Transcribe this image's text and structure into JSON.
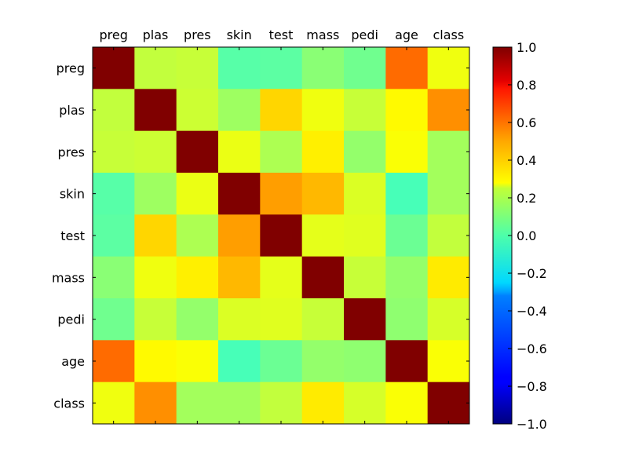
{
  "chart_data": {
    "type": "heatmap",
    "title": "",
    "xlabel": "",
    "ylabel": "",
    "x_categories": [
      "preg",
      "plas",
      "pres",
      "skin",
      "test",
      "mass",
      "pedi",
      "age",
      "class"
    ],
    "y_categories": [
      "preg",
      "plas",
      "pres",
      "skin",
      "test",
      "mass",
      "pedi",
      "age",
      "class"
    ],
    "x_axis_position": "top",
    "values": [
      [
        1.0,
        0.13,
        0.14,
        -0.08,
        -0.07,
        0.02,
        -0.03,
        0.54,
        0.22
      ],
      [
        0.13,
        1.0,
        0.15,
        0.06,
        0.33,
        0.22,
        0.14,
        0.26,
        0.47
      ],
      [
        0.14,
        0.15,
        1.0,
        0.21,
        0.09,
        0.28,
        0.04,
        0.24,
        0.07
      ],
      [
        -0.08,
        0.06,
        0.21,
        1.0,
        0.44,
        0.39,
        0.18,
        -0.11,
        0.07
      ],
      [
        -0.07,
        0.33,
        0.09,
        0.44,
        1.0,
        0.2,
        0.19,
        -0.04,
        0.13
      ],
      [
        0.02,
        0.22,
        0.28,
        0.39,
        0.2,
        1.0,
        0.14,
        0.04,
        0.29
      ],
      [
        -0.03,
        0.14,
        0.04,
        0.18,
        0.19,
        0.14,
        1.0,
        0.03,
        0.17
      ],
      [
        0.54,
        0.26,
        0.24,
        -0.11,
        -0.04,
        0.04,
        0.03,
        1.0,
        0.24
      ],
      [
        0.22,
        0.47,
        0.07,
        0.07,
        0.13,
        0.29,
        0.17,
        0.24,
        1.0
      ]
    ],
    "colormap": "jet",
    "vmin": -1.0,
    "vmax": 1.0,
    "grid": false,
    "colorbar": {
      "position": "right",
      "ticks": [
        -1.0,
        -0.8,
        -0.6,
        -0.4,
        -0.2,
        0.0,
        0.2,
        0.4,
        0.6,
        0.8,
        1.0
      ],
      "tick_labels": [
        "−1.0",
        "−0.8",
        "−0.6",
        "−0.4",
        "−0.2",
        "0.0",
        "0.2",
        "0.4",
        "0.6",
        "0.8",
        "1.0"
      ]
    }
  }
}
